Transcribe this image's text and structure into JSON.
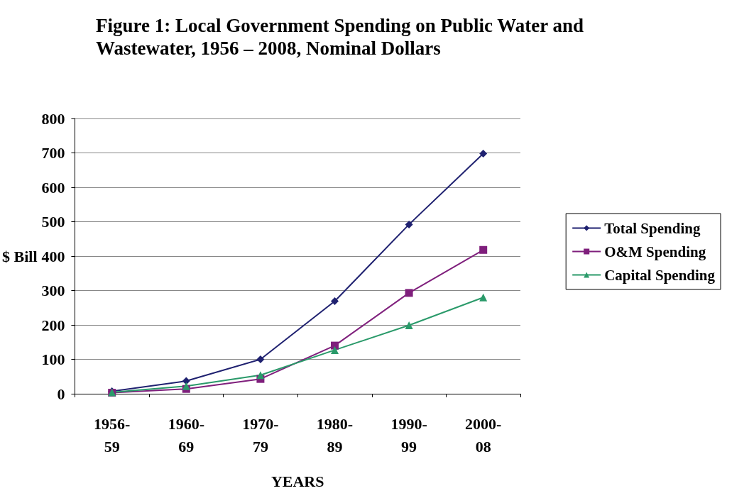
{
  "chart_data": {
    "type": "line",
    "title": "Figure 1: Local Government Spending on Public Water and Wastewater, 1956 – 2008, Nominal Dollars",
    "xlabel": "YEARS",
    "ylabel": "$ Bill",
    "categories": [
      "1956-59",
      "1960-69",
      "1970-79",
      "1980-89",
      "1990-99",
      "2000-08"
    ],
    "series": [
      {
        "name": "Total Spending",
        "color": "#1f2170",
        "marker": "diamond",
        "values": [
          7,
          37,
          100,
          269,
          492,
          698
        ]
      },
      {
        "name": "O&M Spending",
        "color": "#7f1f7c",
        "marker": "square",
        "values": [
          3,
          14,
          43,
          140,
          293,
          418
        ]
      },
      {
        "name": "Capital Spending",
        "color": "#2a9a6a",
        "marker": "triangle",
        "values": [
          4,
          22,
          54,
          127,
          199,
          280
        ]
      }
    ],
    "ylim": [
      0,
      800
    ],
    "yticks": [
      0,
      100,
      200,
      300,
      400,
      500,
      600,
      700,
      800
    ],
    "grid": "y",
    "legend": "right",
    "line_style": "solid"
  }
}
